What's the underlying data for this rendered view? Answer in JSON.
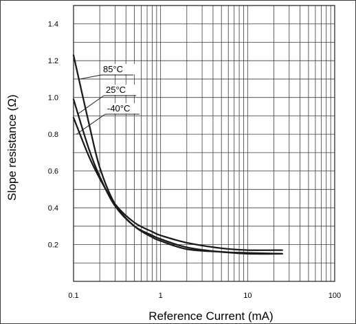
{
  "chart_data": {
    "type": "line",
    "title": "",
    "xlabel": "Reference Current (mA)",
    "ylabel": "Slope resistance  (Ω)",
    "xscale": "log",
    "xlim": [
      0.1,
      100
    ],
    "ylim": [
      0,
      1.5
    ],
    "grid": true,
    "xticks": [
      0.1,
      1,
      10,
      100
    ],
    "xtick_labels": [
      "0.1",
      "1",
      "10",
      "100"
    ],
    "yticks": [
      0.2,
      0.4,
      0.6,
      0.8,
      1.0,
      1.2,
      1.4
    ],
    "ytick_labels": [
      "0.2",
      "0.4",
      "0.6",
      "0.8",
      "1.0",
      "1.2",
      "1.4"
    ],
    "series": [
      {
        "name": "85°C",
        "x": [
          0.1,
          0.15,
          0.2,
          0.3,
          0.5,
          0.8,
          1,
          2,
          5,
          10,
          25
        ],
        "y": [
          1.23,
          0.86,
          0.62,
          0.42,
          0.3,
          0.24,
          0.22,
          0.175,
          0.16,
          0.15,
          0.15
        ]
      },
      {
        "name": "25°C",
        "x": [
          0.1,
          0.15,
          0.2,
          0.3,
          0.5,
          0.8,
          1,
          2,
          5,
          10,
          25
        ],
        "y": [
          0.99,
          0.72,
          0.57,
          0.41,
          0.3,
          0.25,
          0.23,
          0.185,
          0.16,
          0.155,
          0.15
        ]
      },
      {
        "name": "-40°C",
        "x": [
          0.1,
          0.15,
          0.2,
          0.3,
          0.5,
          0.8,
          1,
          2,
          5,
          10,
          25
        ],
        "y": [
          0.89,
          0.68,
          0.56,
          0.42,
          0.32,
          0.27,
          0.25,
          0.21,
          0.18,
          0.17,
          0.17
        ]
      }
    ],
    "line_color": "#1a1a1a"
  }
}
